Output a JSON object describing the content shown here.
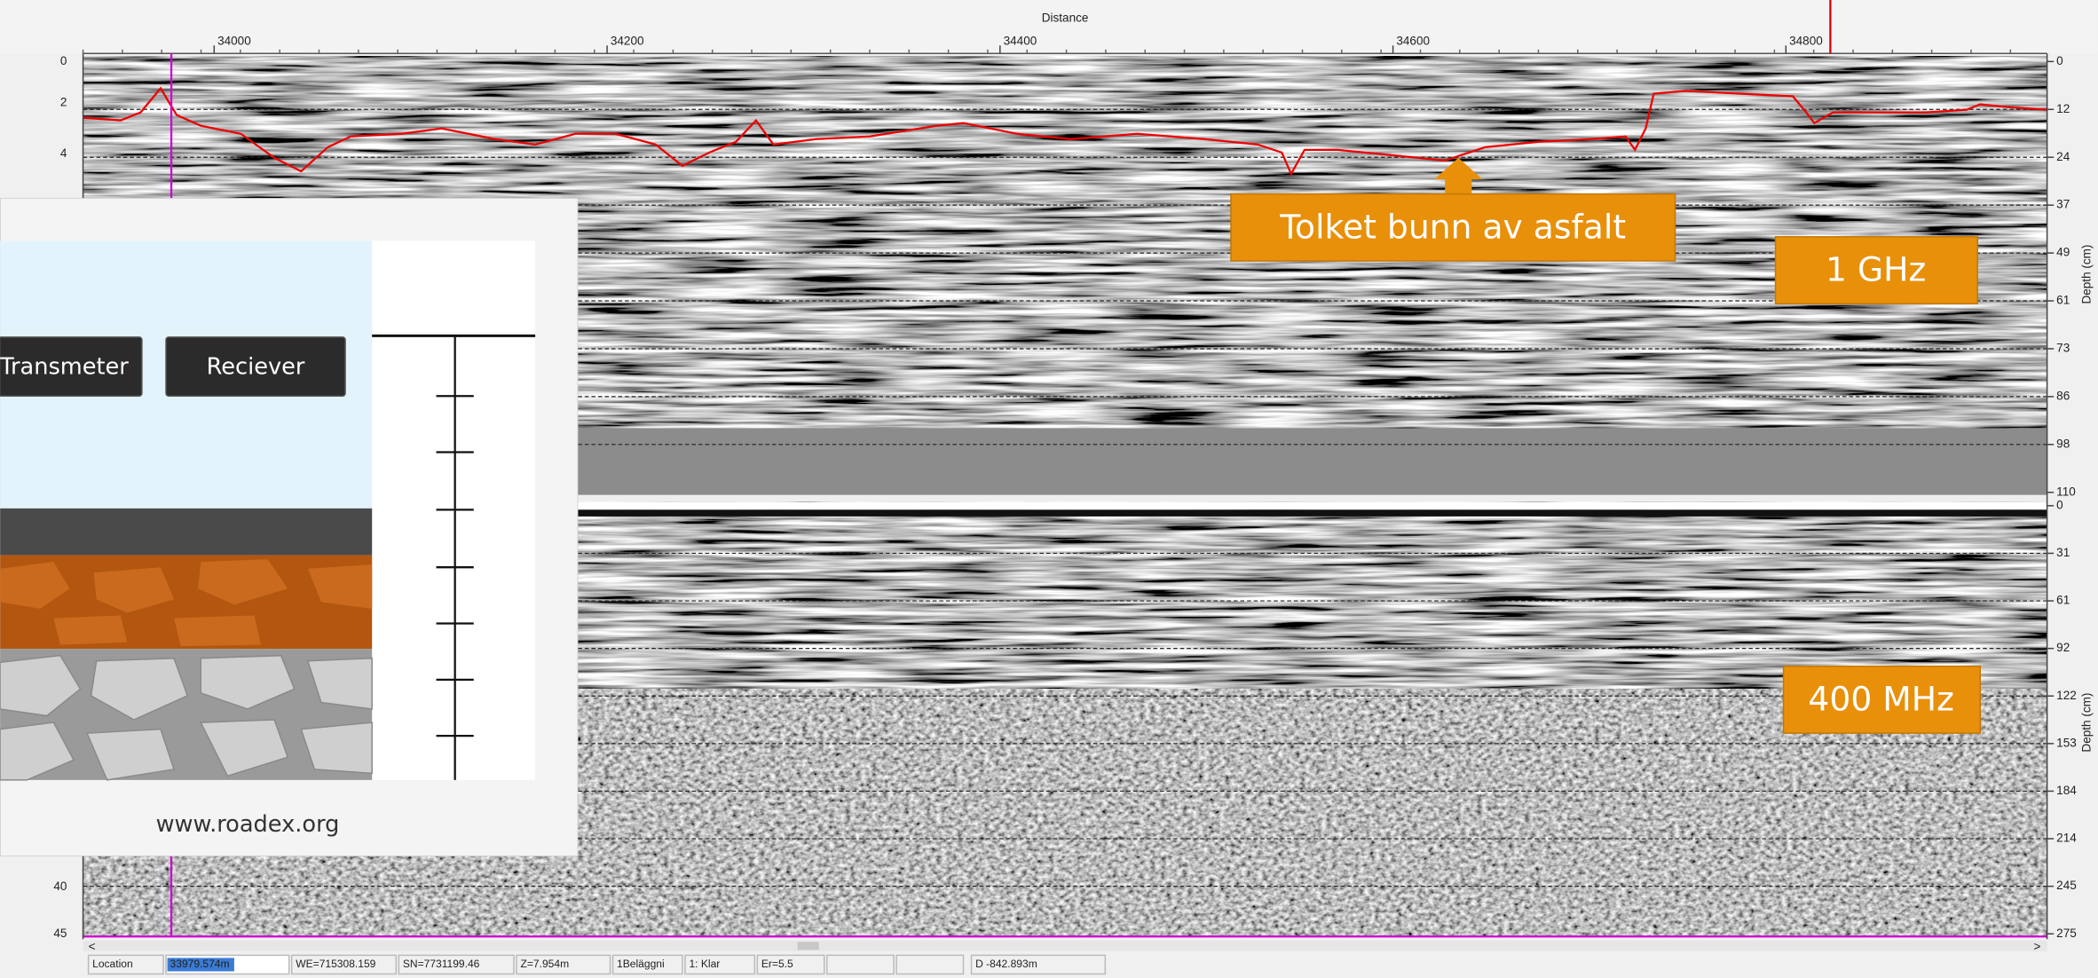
{
  "top_axis": {
    "title": "Distance",
    "ticks": [
      "34000",
      "34200",
      "34400",
      "34600",
      "34800"
    ]
  },
  "left_axis": {
    "upper_ticks": [
      "0",
      "2",
      "4"
    ],
    "lower_ticks": [
      "40",
      "45"
    ]
  },
  "right_axis_upper": {
    "title": "Depth (cm)",
    "ticks": [
      "0",
      "12",
      "24",
      "37",
      "49",
      "61",
      "73",
      "86",
      "98",
      "110"
    ]
  },
  "right_axis_lower": {
    "title": "Depth (cm)",
    "ticks": [
      "0",
      "31",
      "61",
      "92",
      "122",
      "153",
      "184",
      "214",
      "245",
      "275"
    ]
  },
  "annotations": {
    "interpretation": "Tolket bunn av asfalt",
    "upper_panel": "1 GHz",
    "lower_panel": "400 MHz"
  },
  "inset": {
    "transmitter": "Transmeter",
    "receiver": "Reciever",
    "source": "www.roadex.org"
  },
  "status_bar": [
    "Location",
    "33979.574m",
    "WE=715308.159",
    "SN=7731199.46",
    "Z=7.954m",
    "1Beläggni",
    "1: Klar",
    "Er=5.5",
    "D -842.893m"
  ]
}
